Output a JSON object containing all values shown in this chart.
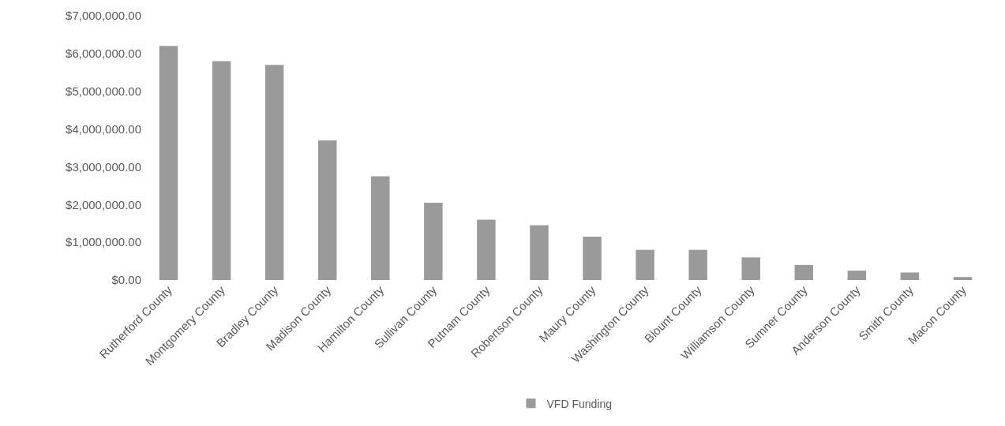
{
  "chart_data": {
    "type": "bar",
    "categories": [
      "Rutherford County",
      "Montgomery County",
      "Bradley County",
      "Madison County",
      "Hamilton County",
      "Sullivan County",
      "Putnam County",
      "Robertson County",
      "Maury County",
      "Washington County",
      "Blount County",
      "Williamson County",
      "Sumner County",
      "Anderson County",
      "Smith County",
      "Macon County"
    ],
    "series": [
      {
        "name": "VFD Funding",
        "color": "#9a9a9a",
        "values": [
          6200000,
          5800000,
          5700000,
          3700000,
          2750000,
          2050000,
          1600000,
          1450000,
          1150000,
          800000,
          800000,
          600000,
          400000,
          250000,
          200000,
          80000
        ]
      }
    ],
    "ylim": [
      0,
      7000000
    ],
    "yticks": [
      {
        "value": 0,
        "label": "$0.00"
      },
      {
        "value": 1000000,
        "label": "$1,000,000.00"
      },
      {
        "value": 2000000,
        "label": "$2,000,000.00"
      },
      {
        "value": 3000000,
        "label": "$3,000,000.00"
      },
      {
        "value": 4000000,
        "label": "$4,000,000.00"
      },
      {
        "value": 5000000,
        "label": "$5,000,000.00"
      },
      {
        "value": 6000000,
        "label": "$6,000,000.00"
      },
      {
        "value": 7000000,
        "label": "$7,000,000.00"
      }
    ],
    "grid": false,
    "legend": "bottom"
  }
}
